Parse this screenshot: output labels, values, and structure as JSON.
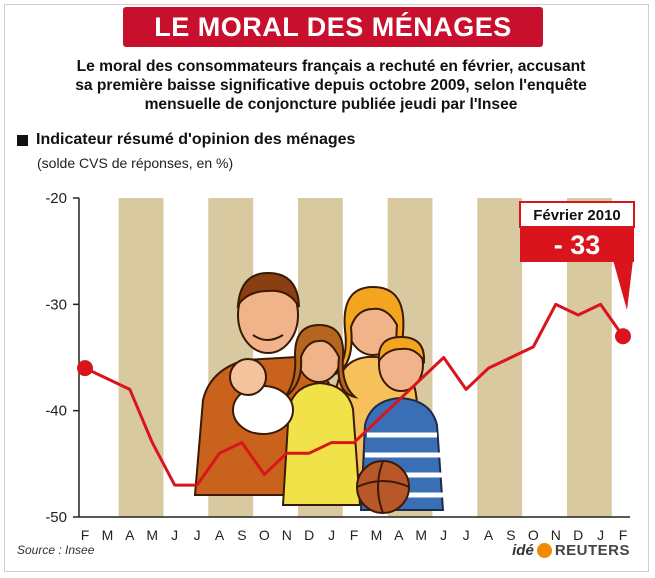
{
  "header": {
    "title": "LE MORAL DES MÉNAGES",
    "subtitle_lines": [
      "Le moral des consommateurs français a rechuté en février, accusant",
      "sa première baisse significative depuis octobre 2009, selon l'enquête",
      "mensuelle de conjoncture publiée jeudi par l'Insee"
    ]
  },
  "legend": {
    "label": "Indicateur résumé d'opinion des ménages",
    "sublabel": "(solde CVS de réponses, en %)"
  },
  "callout": {
    "date": "Février 2010",
    "value": "- 33"
  },
  "footer": {
    "source": "Source : Insee",
    "logo_ide": "idé",
    "logo_reuters": "REUTERS"
  },
  "colors": {
    "banner": "#c8102e",
    "line": "#d9141d",
    "band": "#d8c9a0",
    "grid": "#222222"
  },
  "chart_data": {
    "type": "line",
    "title": "Indicateur résumé d'opinion des ménages",
    "subtitle": "(solde CVS de réponses, en %)",
    "categories": [
      "F",
      "M",
      "A",
      "M",
      "J",
      "J",
      "A",
      "S",
      "O",
      "N",
      "D",
      "J",
      "F",
      "M",
      "A",
      "M",
      "J",
      "J",
      "A",
      "S",
      "O",
      "N",
      "D",
      "J",
      "F"
    ],
    "series": [
      {
        "values": [
          -36,
          -37,
          -38,
          -43,
          -47,
          -47,
          -44,
          -43,
          -46,
          -44,
          -44,
          -43,
          -43,
          -41,
          -39,
          -37,
          -35,
          -38,
          -36,
          -35,
          -34,
          -30,
          -31,
          -30,
          -33
        ]
      }
    ],
    "yticks": [
      "-20",
      "-30",
      "-40",
      "-50"
    ],
    "ylim": [
      -50,
      -20
    ],
    "grid": false,
    "shaded_bands": true
  }
}
